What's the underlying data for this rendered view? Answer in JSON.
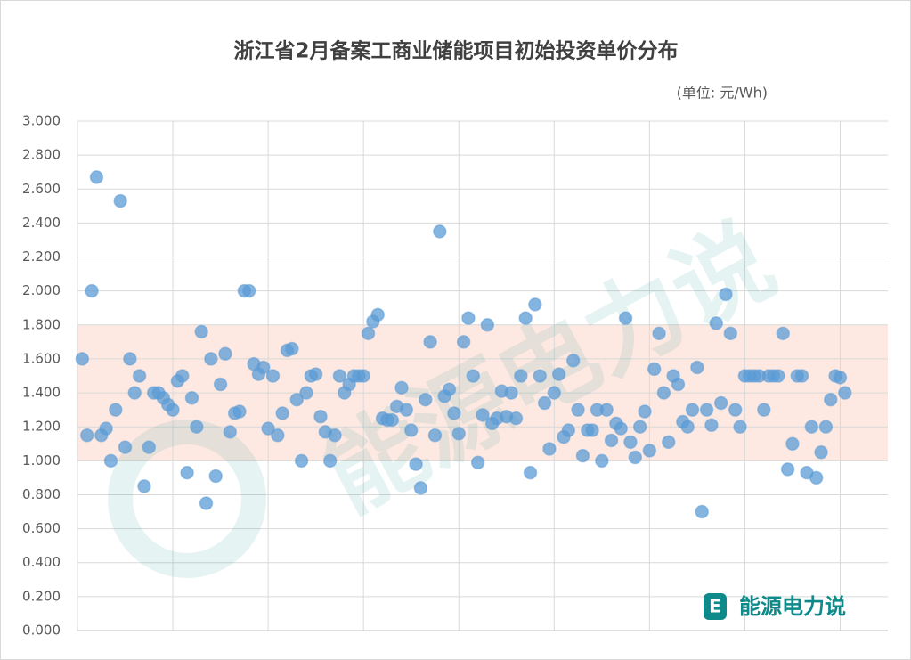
{
  "chart_data": {
    "type": "scatter",
    "title": "浙江省2月备案工商业储能项目初始投资单价分布",
    "subtitle": "(单位: 元/Wh)",
    "watermark": "能源电力说",
    "logo_text": "能源电力说",
    "color": "#5b9bd5",
    "band_color": "#fde9e1",
    "band": [
      1,
      1.8
    ],
    "grid": true,
    "xlim": [
      0,
      170
    ],
    "xticks": [
      20,
      40,
      60,
      80,
      100,
      120,
      140,
      160
    ],
    "ylim": [
      0,
      3
    ],
    "yticks": [
      {
        "value": 0,
        "label": "0.000"
      },
      {
        "value": 0.2,
        "label": "0.200"
      },
      {
        "value": 0.4,
        "label": "0.400"
      },
      {
        "value": 0.6,
        "label": "0.600"
      },
      {
        "value": 0.8,
        "label": "0.800"
      },
      {
        "value": 1,
        "label": "1.000"
      },
      {
        "value": 1.2,
        "label": "1.200"
      },
      {
        "value": 1.4,
        "label": "1.400"
      },
      {
        "value": 1.6,
        "label": "1.600"
      },
      {
        "value": 1.8,
        "label": "1.800"
      },
      {
        "value": 2,
        "label": "2.000"
      },
      {
        "value": 2.2,
        "label": "2.200"
      },
      {
        "value": 2.4,
        "label": "2.400"
      },
      {
        "value": 2.6,
        "label": "2.600"
      },
      {
        "value": 2.8,
        "label": "2.800"
      },
      {
        "value": 3,
        "label": "3.000"
      }
    ],
    "x": [
      1,
      2,
      3,
      4,
      5,
      6,
      7,
      8,
      9,
      10,
      11,
      12,
      13,
      14,
      15,
      16,
      17,
      18,
      19,
      20,
      21,
      22,
      23,
      24,
      25,
      26,
      27,
      28,
      29,
      30,
      31,
      32,
      33,
      34,
      35,
      36,
      37,
      38,
      39,
      40,
      41,
      42,
      43,
      44,
      45,
      46,
      47,
      48,
      49,
      50,
      51,
      52,
      53,
      54,
      55,
      56,
      57,
      58,
      59,
      60,
      61,
      62,
      63,
      64,
      65,
      66,
      67,
      68,
      69,
      70,
      71,
      72,
      73,
      74,
      75,
      76,
      77,
      78,
      79,
      80,
      81,
      82,
      83,
      84,
      85,
      86,
      87,
      88,
      89,
      90,
      91,
      92,
      93,
      94,
      95,
      96,
      97,
      98,
      99,
      100,
      101,
      102,
      103,
      104,
      105,
      106,
      107,
      108,
      109,
      110,
      111,
      112,
      113,
      114,
      115,
      116,
      117,
      118,
      119,
      120,
      121,
      122,
      123,
      124,
      125,
      126,
      127,
      128,
      129,
      130,
      131,
      132,
      133,
      134,
      135,
      136,
      137,
      138,
      139,
      140,
      141,
      142,
      143,
      144,
      145,
      146,
      147,
      148,
      149,
      150,
      151,
      152,
      153,
      154,
      155,
      156,
      157,
      158,
      159,
      160,
      161
    ],
    "values": [
      1.6,
      1.15,
      2,
      2.67,
      1.15,
      1.19,
      1,
      1.3,
      2.53,
      1.08,
      1.6,
      1.4,
      1.5,
      0.85,
      1.08,
      1.4,
      1.4,
      1.37,
      1.33,
      1.3,
      1.47,
      1.5,
      0.93,
      1.37,
      1.2,
      1.76,
      0.75,
      1.6,
      0.91,
      1.45,
      1.63,
      1.17,
      1.28,
      1.29,
      2,
      2,
      1.57,
      1.51,
      1.55,
      1.19,
      1.5,
      1.15,
      1.28,
      1.65,
      1.66,
      1.36,
      1,
      1.4,
      1.5,
      1.51,
      1.26,
      1.17,
      1,
      1.15,
      1.5,
      1.4,
      1.45,
      1.5,
      1.5,
      1.5,
      1.75,
      1.82,
      1.86,
      1.25,
      1.24,
      1.24,
      1.32,
      1.43,
      1.3,
      1.18,
      0.98,
      0.84,
      1.36,
      1.7,
      1.15,
      2.35,
      1.38,
      1.42,
      1.28,
      1.16,
      1.7,
      1.84,
      1.5,
      0.99,
      1.27,
      1.8,
      1.22,
      1.25,
      1.41,
      1.26,
      1.4,
      1.25,
      1.5,
      1.84,
      0.93,
      1.92,
      1.5,
      1.34,
      1.07,
      1.4,
      1.51,
      1.14,
      1.18,
      1.59,
      1.3,
      1.03,
      1.18,
      1.18,
      1.3,
      1,
      1.3,
      1.12,
      1.22,
      1.19,
      1.84,
      1.11,
      1.02,
      1.2,
      1.29,
      1.06,
      1.54,
      1.75,
      1.4,
      1.11,
      1.5,
      1.45,
      1.23,
      1.2,
      1.3,
      1.55,
      0.7,
      1.3,
      1.21,
      1.81,
      1.34,
      1.98,
      1.75,
      1.3,
      1.2,
      1.5,
      1.5,
      1.5,
      1.5,
      1.3,
      1.5,
      1.5,
      1.5,
      1.75,
      0.95,
      1.1,
      1.5,
      1.5,
      0.93,
      1.2,
      0.9,
      1.05,
      1.2,
      1.36,
      1.5,
      1.49,
      1.4
    ]
  }
}
